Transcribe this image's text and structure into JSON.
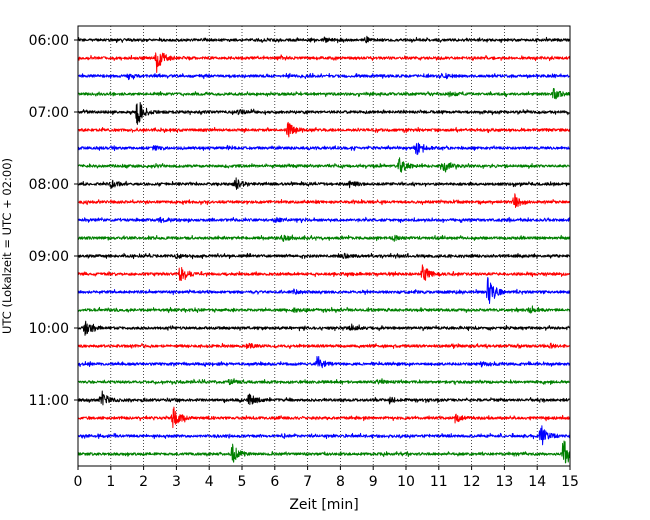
{
  "chart_data": {
    "type": "line",
    "title": "",
    "xlabel": "Zeit  [min]",
    "ylabel": "UTC (Lokalzeit = UTC + 02:00)",
    "xlim": [
      0,
      15
    ],
    "x_ticks": [
      0,
      1,
      2,
      3,
      4,
      5,
      6,
      7,
      8,
      9,
      10,
      11,
      12,
      13,
      14,
      15
    ],
    "y_ticks": [
      "06:00",
      "07:00",
      "08:00",
      "09:00",
      "10:00",
      "11:00"
    ],
    "grid": "vertical dotted",
    "legend": "none",
    "trace_interval_min": 15,
    "color_cycle": [
      "#000000",
      "#ff0000",
      "#0000ff",
      "#008000"
    ],
    "traces": [
      {
        "start": "06:00",
        "events": [
          {
            "t": 7.5,
            "amp": 0.12
          },
          {
            "t": 8.8,
            "amp": 0.14
          }
        ]
      },
      {
        "start": "06:15",
        "events": [
          {
            "t": 2.4,
            "amp": 1.0
          },
          {
            "t": 6.2,
            "amp": 0.12
          }
        ]
      },
      {
        "start": "06:30",
        "events": [
          {
            "t": 1.5,
            "amp": 0.12
          },
          {
            "t": 11.2,
            "amp": 0.14
          }
        ]
      },
      {
        "start": "06:45",
        "events": [
          {
            "t": 11.3,
            "amp": 0.14
          },
          {
            "t": 14.5,
            "amp": 0.4
          }
        ]
      },
      {
        "start": "07:00",
        "events": [
          {
            "t": 1.8,
            "amp": 1.1
          },
          {
            "t": 4.9,
            "amp": 0.14
          }
        ]
      },
      {
        "start": "07:15",
        "events": [
          {
            "t": 6.4,
            "amp": 0.55
          }
        ]
      },
      {
        "start": "07:30",
        "events": [
          {
            "t": 2.3,
            "amp": 0.14
          },
          {
            "t": 10.3,
            "amp": 0.5
          }
        ]
      },
      {
        "start": "07:45",
        "events": [
          {
            "t": 9.8,
            "amp": 0.6
          },
          {
            "t": 11.1,
            "amp": 0.5
          }
        ]
      },
      {
        "start": "08:00",
        "events": [
          {
            "t": 1.0,
            "amp": 0.3
          },
          {
            "t": 4.8,
            "amp": 0.4
          },
          {
            "t": 8.3,
            "amp": 0.25
          }
        ]
      },
      {
        "start": "08:15",
        "events": [
          {
            "t": 13.3,
            "amp": 0.6
          }
        ]
      },
      {
        "start": "08:30",
        "events": [
          {
            "t": 2.5,
            "amp": 0.14
          },
          {
            "t": 6.0,
            "amp": 0.14
          }
        ]
      },
      {
        "start": "08:45",
        "events": [
          {
            "t": 6.3,
            "amp": 0.14
          },
          {
            "t": 9.6,
            "amp": 0.2
          }
        ]
      },
      {
        "start": "09:00",
        "events": [
          {
            "t": 3.0,
            "amp": 0.14
          },
          {
            "t": 8.1,
            "amp": 0.14
          }
        ]
      },
      {
        "start": "09:15",
        "events": [
          {
            "t": 3.1,
            "amp": 0.6
          },
          {
            "t": 10.5,
            "amp": 0.7
          }
        ]
      },
      {
        "start": "09:30",
        "events": [
          {
            "t": 6.6,
            "amp": 0.14
          },
          {
            "t": 12.5,
            "amp": 1.2
          }
        ]
      },
      {
        "start": "09:45",
        "events": [
          {
            "t": 6.6,
            "amp": 0.14
          },
          {
            "t": 13.8,
            "amp": 0.14
          }
        ]
      },
      {
        "start": "10:00",
        "events": [
          {
            "t": 0.2,
            "amp": 0.5
          },
          {
            "t": 8.3,
            "amp": 0.14
          }
        ]
      },
      {
        "start": "10:15",
        "events": [
          {
            "t": 5.2,
            "amp": 0.14
          },
          {
            "t": 14.4,
            "amp": 0.14
          }
        ]
      },
      {
        "start": "10:30",
        "events": [
          {
            "t": 7.3,
            "amp": 0.6
          },
          {
            "t": 12.3,
            "amp": 0.14
          }
        ]
      },
      {
        "start": "10:45",
        "events": [
          {
            "t": 4.6,
            "amp": 0.14
          },
          {
            "t": 9.1,
            "amp": 0.14
          }
        ]
      },
      {
        "start": "11:00",
        "events": [
          {
            "t": 0.7,
            "amp": 0.7
          },
          {
            "t": 5.2,
            "amp": 0.5
          },
          {
            "t": 9.5,
            "amp": 0.2
          }
        ]
      },
      {
        "start": "11:15",
        "events": [
          {
            "t": 2.9,
            "amp": 0.8
          },
          {
            "t": 11.5,
            "amp": 0.3
          }
        ]
      },
      {
        "start": "11:30",
        "events": [
          {
            "t": 14.1,
            "amp": 0.9
          },
          {
            "t": 15.0,
            "amp": 0.5
          }
        ]
      },
      {
        "start": "11:45",
        "events": [
          {
            "t": 4.7,
            "amp": 0.7
          },
          {
            "t": 14.8,
            "amp": 1.2
          }
        ]
      }
    ]
  }
}
